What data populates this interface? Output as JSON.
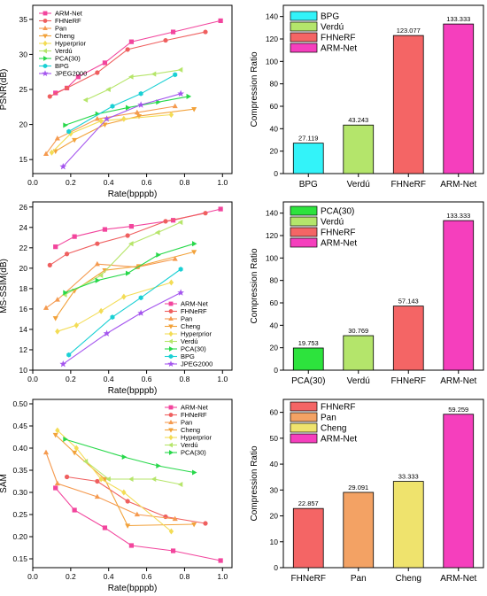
{
  "chart_data": [
    {
      "type": "line",
      "xlabel": "Rate(bpppb)",
      "ylabel": "PSNR(dB)",
      "xlim": [
        0,
        1.05
      ],
      "ylim": [
        13,
        37
      ],
      "xticks": [
        "0.0",
        "0.2",
        "0.4",
        "0.6",
        "0.8",
        "1.0"
      ],
      "yticks": [
        "15",
        "20",
        "25",
        "30",
        "35"
      ],
      "legend": "top-left",
      "series": [
        {
          "name": "ARM-Net",
          "color": "#f2459d",
          "marker": "square",
          "x": [
            0.12,
            0.18,
            0.24,
            0.38,
            0.52,
            0.74,
            0.99
          ],
          "y": [
            24.5,
            25.2,
            26.8,
            28.8,
            31.8,
            33.2,
            34.8
          ]
        },
        {
          "name": "FHNeRF",
          "color": "#ef5f5f",
          "marker": "circle",
          "x": [
            0.09,
            0.18,
            0.34,
            0.5,
            0.7,
            0.91
          ],
          "y": [
            24.0,
            25.2,
            27.4,
            30.7,
            32.0,
            33.2
          ]
        },
        {
          "name": "Pan",
          "color": "#f59a4f",
          "marker": "triangle",
          "x": [
            0.07,
            0.13,
            0.34,
            0.55,
            0.75
          ],
          "y": [
            15.8,
            18.0,
            20.8,
            21.7,
            22.6
          ]
        },
        {
          "name": "Cheng",
          "color": "#f2a23b",
          "marker": "triangle-down",
          "x": [
            0.12,
            0.22,
            0.38,
            0.56,
            0.85
          ],
          "y": [
            16.2,
            17.8,
            20.0,
            21.2,
            22.2
          ]
        },
        {
          "name": "Hyperprior",
          "color": "#f3dc55",
          "marker": "diamond",
          "x": [
            0.1,
            0.2,
            0.36,
            0.48,
            0.73
          ],
          "y": [
            16.0,
            18.7,
            20.5,
            20.8,
            21.4
          ]
        },
        {
          "name": "Verdú",
          "color": "#b6e56a",
          "marker": "triangle-left",
          "x": [
            0.28,
            0.4,
            0.52,
            0.64,
            0.78
          ],
          "y": [
            23.5,
            25.0,
            26.8,
            27.2,
            27.8
          ]
        },
        {
          "name": "PCA(30)",
          "color": "#27d84a",
          "marker": "triangle-right",
          "x": [
            0.17,
            0.34,
            0.5,
            0.66,
            0.82
          ],
          "y": [
            19.9,
            21.5,
            22.4,
            23.2,
            24.0
          ]
        },
        {
          "name": "BPG",
          "color": "#1ad0d4",
          "marker": "hexagon",
          "x": [
            0.19,
            0.42,
            0.57,
            0.75
          ],
          "y": [
            19.0,
            22.6,
            24.4,
            27.1
          ]
        },
        {
          "name": "JPEG2000",
          "color": "#a455ee",
          "marker": "star",
          "x": [
            0.16,
            0.39,
            0.57,
            0.78
          ],
          "y": [
            14.0,
            20.8,
            22.8,
            24.4
          ]
        }
      ]
    },
    {
      "type": "bar",
      "ylabel": "Compression Ratio",
      "ylim": [
        0,
        150
      ],
      "yticks": [
        "0",
        "20",
        "40",
        "60",
        "80",
        "100",
        "120",
        "140"
      ],
      "legend": "top-left",
      "categories": [
        "BPG",
        "Verdú",
        "FHNeRF",
        "ARM-Net"
      ],
      "values": [
        27.119,
        43.243,
        123.077,
        133.333
      ],
      "labels": [
        "27.119",
        "43.243",
        "123.077",
        "133.333"
      ],
      "colors": [
        "#33f3f9",
        "#b4e56b",
        "#f46565",
        "#f53fbd"
      ]
    },
    {
      "type": "line",
      "xlabel": "Rate(bpppb)",
      "ylabel": "MS-SSIM(dB)",
      "xlim": [
        0,
        1.05
      ],
      "ylim": [
        10,
        26.5
      ],
      "xticks": [
        "0.0",
        "0.2",
        "0.4",
        "0.6",
        "0.8",
        "1.0"
      ],
      "yticks": [
        "10",
        "12",
        "14",
        "16",
        "18",
        "20",
        "22",
        "24",
        "26"
      ],
      "legend": "bottom-right",
      "series": [
        {
          "name": "ARM-Net",
          "color": "#f2459d",
          "marker": "square",
          "x": [
            0.12,
            0.22,
            0.38,
            0.52,
            0.74,
            0.99
          ],
          "y": [
            22.1,
            23.1,
            23.8,
            24.1,
            24.7,
            25.8
          ]
        },
        {
          "name": "FHNeRF",
          "color": "#ef5f5f",
          "marker": "circle",
          "x": [
            0.09,
            0.18,
            0.34,
            0.5,
            0.7,
            0.91
          ],
          "y": [
            20.3,
            21.4,
            22.4,
            23.2,
            24.6,
            25.4
          ]
        },
        {
          "name": "Pan",
          "color": "#f59a4f",
          "marker": "triangle",
          "x": [
            0.07,
            0.13,
            0.34,
            0.55,
            0.75
          ],
          "y": [
            16.1,
            16.9,
            20.4,
            20.1,
            20.9
          ]
        },
        {
          "name": "Cheng",
          "color": "#f2a23b",
          "marker": "triangle-down",
          "x": [
            0.12,
            0.22,
            0.38,
            0.56,
            0.85
          ],
          "y": [
            15.1,
            17.8,
            19.8,
            20.2,
            21.6
          ]
        },
        {
          "name": "Hyperprior",
          "color": "#f3dc55",
          "marker": "diamond",
          "x": [
            0.13,
            0.23,
            0.36,
            0.48,
            0.73
          ],
          "y": [
            13.8,
            14.4,
            15.8,
            17.2,
            18.6
          ]
        },
        {
          "name": "Verdú",
          "color": "#b6e56a",
          "marker": "triangle-left",
          "x": [
            0.17,
            0.36,
            0.52,
            0.66,
            0.78
          ],
          "y": [
            17.4,
            19.3,
            22.4,
            23.5,
            24.5
          ]
        },
        {
          "name": "PCA(30)",
          "color": "#27d84a",
          "marker": "triangle-right",
          "x": [
            0.17,
            0.34,
            0.5,
            0.66,
            0.85
          ],
          "y": [
            17.6,
            18.8,
            19.5,
            21.3,
            22.4
          ]
        },
        {
          "name": "BPG",
          "color": "#1ad0d4",
          "marker": "hexagon",
          "x": [
            0.19,
            0.42,
            0.57,
            0.78
          ],
          "y": [
            11.5,
            15.2,
            17.1,
            19.9
          ]
        },
        {
          "name": "JPEG2000",
          "color": "#a455ee",
          "marker": "star",
          "x": [
            0.16,
            0.39,
            0.57,
            0.78
          ],
          "y": [
            10.6,
            13.6,
            15.6,
            17.6
          ]
        }
      ]
    },
    {
      "type": "bar",
      "ylabel": "Compression Ratio",
      "ylim": [
        0,
        150
      ],
      "yticks": [
        "0",
        "20",
        "40",
        "60",
        "80",
        "100",
        "120",
        "140"
      ],
      "legend": "top-left",
      "categories": [
        "PCA(30)",
        "Verdú",
        "FHNeRF",
        "ARM-Net"
      ],
      "values": [
        19.753,
        30.769,
        57.143,
        133.333
      ],
      "labels": [
        "19.753",
        "30.769",
        "57.143",
        "133.333"
      ],
      "colors": [
        "#2de33d",
        "#b4e56b",
        "#f46565",
        "#f53fbd"
      ]
    },
    {
      "type": "line",
      "xlabel": "Rate(bpppb)",
      "ylabel": "SAM",
      "xlim": [
        0,
        1.05
      ],
      "ylim": [
        0.13,
        0.51
      ],
      "xticks": [
        "0.0",
        "0.2",
        "0.4",
        "0.6",
        "0.8",
        "1.0"
      ],
      "yticks": [
        "0.15",
        "0.20",
        "0.25",
        "0.30",
        "0.35",
        "0.40",
        "0.45",
        "0.50"
      ],
      "legend": "top-right",
      "series": [
        {
          "name": "ARM-Net",
          "color": "#f2459d",
          "marker": "square",
          "x": [
            0.12,
            0.22,
            0.38,
            0.52,
            0.74,
            0.99
          ],
          "y": [
            0.31,
            0.26,
            0.22,
            0.18,
            0.168,
            0.146
          ]
        },
        {
          "name": "FHNeRF",
          "color": "#ef5f5f",
          "marker": "circle",
          "x": [
            0.18,
            0.34,
            0.5,
            0.7,
            0.91
          ],
          "y": [
            0.335,
            0.325,
            0.28,
            0.245,
            0.23
          ]
        },
        {
          "name": "Pan",
          "color": "#f59a4f",
          "marker": "triangle",
          "x": [
            0.07,
            0.13,
            0.34,
            0.55,
            0.75
          ],
          "y": [
            0.39,
            0.32,
            0.29,
            0.25,
            0.24
          ]
        },
        {
          "name": "Cheng",
          "color": "#f2a23b",
          "marker": "triangle-down",
          "x": [
            0.12,
            0.22,
            0.38,
            0.5,
            0.85
          ],
          "y": [
            0.43,
            0.39,
            0.33,
            0.225,
            0.228
          ]
        },
        {
          "name": "Hyperprior",
          "color": "#f3dc55",
          "marker": "diamond",
          "x": [
            0.13,
            0.23,
            0.36,
            0.48,
            0.73
          ],
          "y": [
            0.44,
            0.4,
            0.33,
            0.3,
            0.212
          ]
        },
        {
          "name": "Verdú",
          "color": "#b6e56a",
          "marker": "triangle-left",
          "x": [
            0.28,
            0.4,
            0.52,
            0.64,
            0.78
          ],
          "y": [
            0.37,
            0.33,
            0.33,
            0.33,
            0.318
          ]
        },
        {
          "name": "PCA(30)",
          "color": "#27d84a",
          "marker": "triangle-right",
          "x": [
            0.17,
            0.48,
            0.66,
            0.85
          ],
          "y": [
            0.42,
            0.38,
            0.36,
            0.345
          ]
        }
      ]
    },
    {
      "type": "bar",
      "ylabel": "Compression Ratio",
      "ylim": [
        0,
        65
      ],
      "yticks": [
        "0",
        "10",
        "20",
        "30",
        "40",
        "50",
        "60"
      ],
      "legend": "top-left",
      "categories": [
        "FHNeRF",
        "Pan",
        "Cheng",
        "ARM-Net"
      ],
      "values": [
        22.857,
        29.091,
        33.333,
        59.259
      ],
      "labels": [
        "22.857",
        "29.091",
        "33.333",
        "59.259"
      ],
      "colors": [
        "#f46565",
        "#f3a264",
        "#efe36d",
        "#f53fbd"
      ]
    }
  ]
}
